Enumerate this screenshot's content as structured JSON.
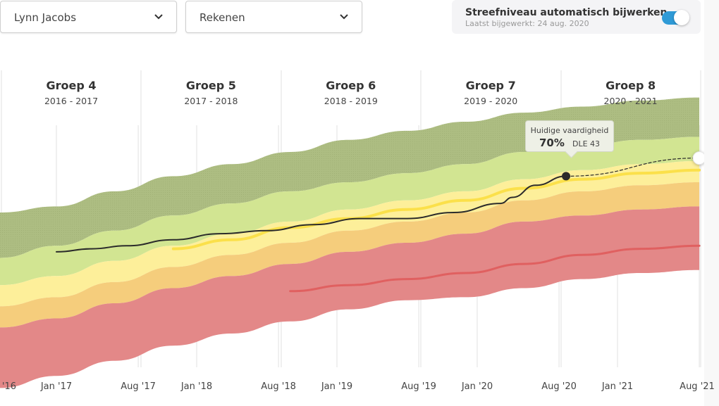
{
  "filters": {
    "student": "Lynn Jacobs",
    "subject": "Rekenen"
  },
  "auto_update": {
    "title": "Streefniveau automatisch bijwerken",
    "subtitle": "Laatst bijgewerkt: 24 aug. 2020",
    "enabled": true
  },
  "tooltip": {
    "title": "Huidige vaardigheid",
    "percent": "70%",
    "dle": "DLE 43"
  },
  "colors": {
    "band_top": "#adbd82",
    "band_high": "#d2e592",
    "band_mid": "#fdef9a",
    "band_mid_line": "#fbe04a",
    "band_low": "#f5cd7c",
    "band_bottom": "#e38888",
    "bottom_line": "#e06060",
    "student_line": "#2b2b2b",
    "toggle": "#2f9ad6",
    "grid": "#e2e2e2"
  },
  "chart_data": {
    "type": "area",
    "title": "",
    "xlabel": "",
    "ylabel": "",
    "x_unit": "months since Jan 2017",
    "xlim": [
      -0.8,
      55
    ],
    "ylim": [
      0,
      100
    ],
    "grid": true,
    "groups": [
      {
        "name": "Groep 4",
        "years": "2016 - 2017"
      },
      {
        "name": "Groep 5",
        "years": "2017 - 2018"
      },
      {
        "name": "Groep 6",
        "years": "2018 - 2019"
      },
      {
        "name": "Groep 7",
        "years": "2019 - 2020"
      },
      {
        "name": "Groep 8",
        "years": "2020 - 2021"
      }
    ],
    "x_ticks": [
      {
        "label": "'16",
        "x": -0.8
      },
      {
        "label": "Jan '17",
        "x": 0
      },
      {
        "label": "Aug '17",
        "x": 7
      },
      {
        "label": "Jan '18",
        "x": 12
      },
      {
        "label": "Aug '18",
        "x": 19
      },
      {
        "label": "Jan '19",
        "x": 24
      },
      {
        "label": "Aug '19",
        "x": 31
      },
      {
        "label": "Jan '20",
        "x": 36
      },
      {
        "label": "Aug '20",
        "x": 43
      },
      {
        "label": "Jan '21",
        "x": 48
      },
      {
        "label": "Aug '21",
        "x": 55
      }
    ],
    "x": [
      -5,
      0,
      5,
      10,
      15,
      20,
      25,
      30,
      35,
      40,
      45,
      50,
      55
    ],
    "bands": [
      {
        "name": "top",
        "lower": [
          45,
          49,
          54,
          59,
          63,
          67,
          70,
          73,
          76,
          80,
          82,
          84,
          85
        ],
        "upper": [
          60,
          62,
          67,
          72,
          76,
          80,
          84,
          87,
          90,
          93,
          95,
          97,
          98
        ]
      },
      {
        "name": "high",
        "lower": [
          36,
          39,
          44,
          49,
          53,
          57,
          61,
          64,
          67,
          71,
          74,
          76,
          77
        ],
        "upper": [
          45,
          49,
          54,
          59,
          63,
          67,
          70,
          73,
          76,
          80,
          82,
          84,
          85
        ]
      },
      {
        "name": "mid",
        "lower": [
          29,
          32,
          37,
          42,
          46,
          50,
          54,
          57,
          60,
          64,
          67,
          69,
          70
        ],
        "upper": [
          36,
          39,
          44,
          49,
          53,
          57,
          61,
          64,
          67,
          71,
          74,
          76,
          77
        ]
      },
      {
        "name": "low",
        "lower": [
          22,
          25,
          30,
          35,
          39,
          43,
          47,
          50,
          53,
          57,
          59,
          61,
          62
        ],
        "upper": [
          29,
          32,
          37,
          42,
          46,
          50,
          54,
          57,
          60,
          64,
          67,
          69,
          70
        ]
      },
      {
        "name": "bottom",
        "lower": [
          2,
          6,
          11,
          16,
          20,
          24,
          28,
          31,
          32,
          35,
          38,
          40,
          41
        ],
        "upper": [
          22,
          25,
          30,
          35,
          39,
          43,
          47,
          50,
          53,
          57,
          59,
          61,
          62
        ]
      }
    ],
    "series": [
      {
        "name": "streefniveau",
        "x": [
          10,
          15,
          20,
          25,
          30,
          35,
          40,
          45,
          50,
          55
        ],
        "values": [
          48,
          51,
          55,
          58,
          61,
          64,
          68,
          71,
          73,
          74
        ]
      },
      {
        "name": "ondergrens",
        "x": [
          20,
          25,
          30,
          35,
          40,
          45,
          50,
          55
        ],
        "values": [
          34,
          36,
          38,
          40,
          43,
          46,
          48,
          49
        ]
      },
      {
        "name": "leerling",
        "x": [
          0,
          3,
          6,
          10,
          14,
          18,
          22,
          26,
          30,
          34,
          38,
          39,
          41,
          43.6
        ],
        "values": [
          47,
          48,
          49,
          51,
          53,
          54,
          56,
          58,
          58,
          60,
          63,
          65,
          69,
          72
        ]
      },
      {
        "name": "projectie",
        "x": [
          43.6,
          55
        ],
        "values": [
          72,
          78
        ]
      }
    ],
    "current_point": {
      "x": 43.6,
      "value": 72,
      "percent": "70%",
      "dle": "DLE 43"
    }
  }
}
